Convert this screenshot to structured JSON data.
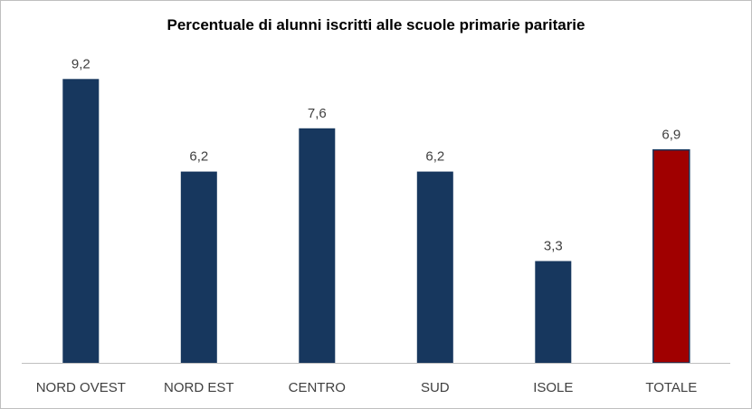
{
  "chart_data": {
    "type": "bar",
    "title": "Percentuale di alunni iscritti alle scuole primarie paritarie",
    "categories": [
      "NORD OVEST",
      "NORD EST",
      "CENTRO",
      "SUD",
      "ISOLE",
      "TOTALE"
    ],
    "values": [
      9.2,
      6.2,
      7.6,
      6.2,
      3.3,
      6.9
    ],
    "value_labels": [
      "9,2",
      "6,2",
      "7,6",
      "6,2",
      "3,3",
      "6,9"
    ],
    "ylim": [
      0,
      10
    ],
    "grid": false,
    "legend": "none",
    "colors": {
      "bar": "#17375e",
      "highlight_bar": "#a00000",
      "highlight_category": "TOTALE",
      "axis": "#bfbfbf"
    }
  }
}
